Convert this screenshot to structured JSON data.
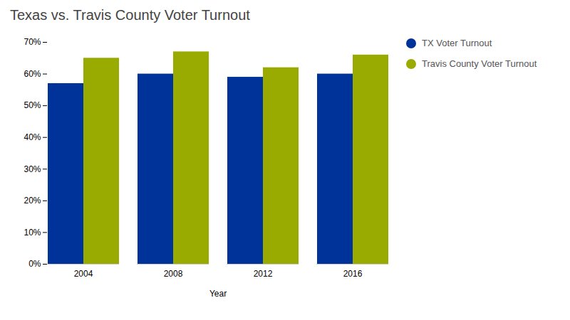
{
  "chart_data": {
    "type": "bar",
    "title": "Texas vs. Travis County Voter Turnout",
    "xlabel": "Year",
    "categories": [
      "2004",
      "2008",
      "2012",
      "2016"
    ],
    "series": [
      {
        "name": "TX Voter Turnout",
        "color": "#003399",
        "values": [
          0.57,
          0.6,
          0.59,
          0.6
        ]
      },
      {
        "name": "Travis County Voter Turnout",
        "color": "#99AA00",
        "values": [
          0.65,
          0.67,
          0.62,
          0.66
        ]
      }
    ],
    "ylim": [
      0,
      0.7
    ],
    "yticks": [
      {
        "value": 0.0,
        "label": "0%"
      },
      {
        "value": 0.1,
        "label": "10%"
      },
      {
        "value": 0.2,
        "label": "20%"
      },
      {
        "value": 0.3,
        "label": "30%"
      },
      {
        "value": 0.4,
        "label": "40%"
      },
      {
        "value": 0.5,
        "label": "50%"
      },
      {
        "value": 0.6,
        "label": "60%"
      },
      {
        "value": 0.7,
        "label": "70%"
      }
    ],
    "grid": false,
    "legend": "right"
  }
}
